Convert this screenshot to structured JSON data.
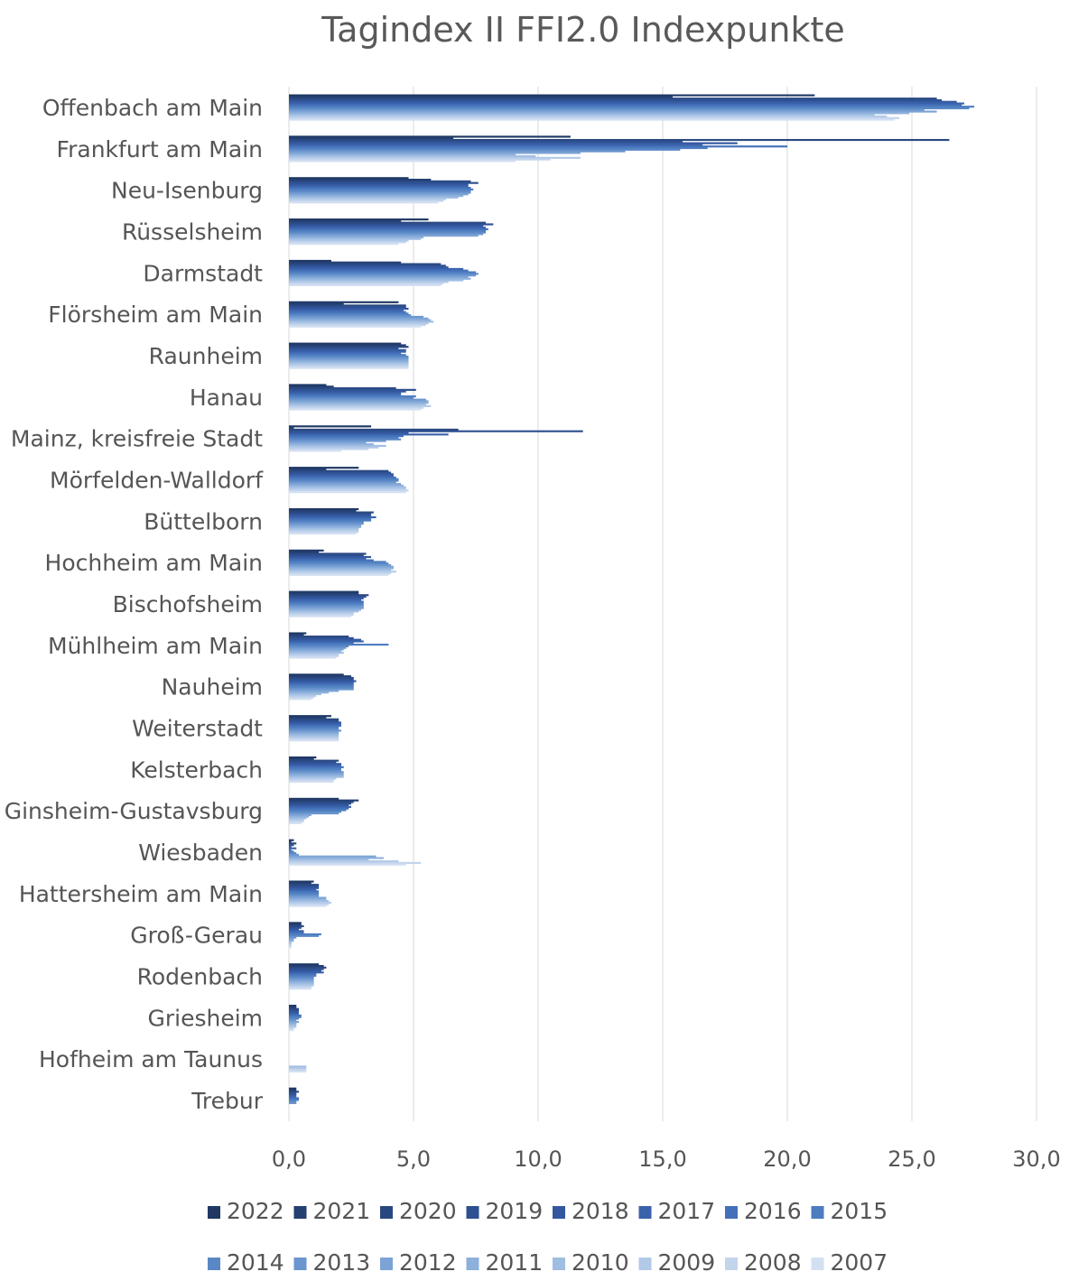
{
  "chart_data": {
    "type": "bar",
    "orientation": "horizontal",
    "title": "Tagindex II FFI2.0 Indexpunkte",
    "xlabel": "",
    "ylabel": "",
    "xlim": [
      0,
      30
    ],
    "x_ticks": [
      "0,0",
      "5,0",
      "10,0",
      "15,0",
      "20,0",
      "25,0",
      "30,0"
    ],
    "x_tick_values": [
      0,
      5,
      10,
      15,
      20,
      25,
      30
    ],
    "grid": "vertical",
    "legend_position": "bottom",
    "categories": [
      "Offenbach am Main",
      "Frankfurt am Main",
      "Neu-Isenburg",
      "Rüsselsheim",
      "Darmstadt",
      "Flörsheim am Main",
      "Raunheim",
      "Hanau",
      "Mainz, kreisfreie Stadt",
      "Mörfelden-Walldorf",
      "Büttelborn",
      "Hochheim am Main",
      "Bischofsheim",
      "Mühlheim am Main",
      "Nauheim",
      "Weiterstadt",
      "Kelsterbach",
      "Ginsheim-Gustavsburg",
      "Wiesbaden",
      "Hattersheim am Main",
      "Groß-Gerau",
      "Rodenbach",
      "Griesheim",
      "Hofheim am Taunus",
      "Trebur"
    ],
    "series": [
      {
        "name": "2022",
        "color": "#1f3864",
        "values": [
          21.1,
          11.3,
          4.8,
          5.6,
          1.7,
          4.4,
          4.5,
          1.5,
          3.3,
          2.8,
          2.8,
          1.4,
          2.8,
          0.7,
          2.2,
          1.7,
          1.1,
          2.0,
          0.2,
          1.0,
          0.5,
          1.2,
          0.3,
          0.0,
          0.3
        ]
      },
      {
        "name": "2021",
        "color": "#243f72",
        "values": [
          15.4,
          6.6,
          5.7,
          4.5,
          4.5,
          2.2,
          4.7,
          1.8,
          0.2,
          1.5,
          2.7,
          1.2,
          2.8,
          0.6,
          2.5,
          1.5,
          1.0,
          2.8,
          0.1,
          0.9,
          0.5,
          1.4,
          0.3,
          0.0,
          0.3
        ]
      },
      {
        "name": "2020",
        "color": "#2a4880",
        "values": [
          26.0,
          26.5,
          7.3,
          7.9,
          6.1,
          4.7,
          4.8,
          4.3,
          6.8,
          4.0,
          3.4,
          3.1,
          3.2,
          2.4,
          2.6,
          2.0,
          2.0,
          2.6,
          0.3,
          1.2,
          0.6,
          1.5,
          0.4,
          0.0,
          0.4
        ]
      },
      {
        "name": "2019",
        "color": "#2e5090",
        "values": [
          26.2,
          15.8,
          7.6,
          8.2,
          6.3,
          4.7,
          4.4,
          5.1,
          11.8,
          4.1,
          3.3,
          3.0,
          3.1,
          2.6,
          2.6,
          2.0,
          1.9,
          2.5,
          0.2,
          1.2,
          0.5,
          1.4,
          0.4,
          0.0,
          0.3
        ]
      },
      {
        "name": "2018",
        "color": "#3358a0",
        "values": [
          26.8,
          18.0,
          7.2,
          7.8,
          6.4,
          4.8,
          4.7,
          4.7,
          4.8,
          4.2,
          3.3,
          3.3,
          3.0,
          2.9,
          2.7,
          2.1,
          2.1,
          2.4,
          0.1,
          1.2,
          0.4,
          1.3,
          0.4,
          0.0,
          0.3
        ]
      },
      {
        "name": "2017",
        "color": "#3a62ab",
        "values": [
          27.1,
          16.6,
          7.2,
          7.9,
          7.0,
          4.6,
          4.7,
          4.5,
          6.4,
          4.2,
          3.5,
          3.1,
          2.9,
          3.0,
          2.6,
          2.1,
          2.1,
          2.5,
          0.3,
          1.1,
          0.6,
          1.4,
          0.4,
          0.0,
          0.3
        ]
      },
      {
        "name": "2016",
        "color": "#4370b8",
        "values": [
          27.0,
          20.0,
          7.3,
          8.0,
          7.2,
          4.7,
          4.5,
          4.5,
          4.6,
          4.3,
          3.3,
          3.4,
          3.0,
          2.6,
          2.6,
          2.1,
          2.2,
          2.4,
          0.1,
          1.2,
          0.6,
          1.1,
          0.5,
          0.0,
          0.4
        ]
      },
      {
        "name": "2015",
        "color": "#4d7cc0",
        "values": [
          27.5,
          16.8,
          7.4,
          7.9,
          7.5,
          4.8,
          4.7,
          5.1,
          4.4,
          4.4,
          3.3,
          3.9,
          3.0,
          4.0,
          2.6,
          2.0,
          2.1,
          2.3,
          0.2,
          1.2,
          1.3,
          1.1,
          0.5,
          0.0,
          0.4
        ]
      },
      {
        "name": "2014",
        "color": "#5a88c6",
        "values": [
          27.3,
          15.7,
          7.3,
          7.9,
          7.6,
          4.9,
          4.8,
          5.0,
          4.5,
          4.4,
          3.0,
          4.0,
          3.0,
          2.4,
          2.6,
          2.0,
          2.1,
          2.1,
          0.3,
          1.2,
          1.2,
          1.0,
          0.4,
          0.0,
          0.3
        ]
      },
      {
        "name": "2013",
        "color": "#6b96cf",
        "values": [
          25.5,
          13.5,
          7.3,
          7.8,
          7.5,
          5.4,
          4.8,
          5.5,
          3.9,
          4.3,
          3.0,
          4.1,
          3.0,
          2.3,
          2.6,
          2.1,
          2.2,
          2.0,
          0.4,
          1.2,
          0.3,
          1.0,
          0.3,
          0.0,
          0.3
        ]
      },
      {
        "name": "2012",
        "color": "#7ca3d5",
        "values": [
          26.0,
          11.7,
          7.2,
          7.6,
          7.2,
          5.6,
          4.8,
          5.6,
          3.1,
          4.5,
          2.9,
          4.2,
          3.0,
          2.2,
          2.0,
          2.0,
          2.2,
          0.9,
          3.5,
          1.5,
          0.2,
          1.0,
          0.4,
          0.0,
          0.0
        ]
      },
      {
        "name": "2011",
        "color": "#8db0dc",
        "values": [
          24.9,
          9.1,
          7.0,
          5.4,
          7.3,
          5.7,
          4.8,
          5.6,
          3.4,
          4.6,
          2.9,
          4.2,
          2.9,
          2.1,
          1.6,
          2.0,
          2.2,
          0.8,
          3.8,
          1.5,
          0.2,
          1.0,
          0.3,
          0.0,
          0.0
        ]
      },
      {
        "name": "2010",
        "color": "#a0bde2",
        "values": [
          23.5,
          9.9,
          6.8,
          5.3,
          7.0,
          5.8,
          4.8,
          5.5,
          3.9,
          4.7,
          2.8,
          4.1,
          2.8,
          2.2,
          1.3,
          2.0,
          2.2,
          0.7,
          3.2,
          1.6,
          0.1,
          1.0,
          0.3,
          0.7,
          0.0
        ]
      },
      {
        "name": "2009",
        "color": "#b2c9e8",
        "values": [
          24.0,
          11.7,
          6.3,
          4.8,
          6.4,
          5.6,
          4.8,
          5.7,
          3.6,
          4.7,
          2.8,
          4.3,
          2.6,
          2.0,
          1.1,
          2.0,
          1.9,
          0.6,
          4.4,
          1.7,
          0.1,
          1.0,
          0.3,
          0.7,
          0.0
        ]
      },
      {
        "name": "2008",
        "color": "#c3d4ed",
        "values": [
          24.5,
          10.5,
          6.2,
          4.7,
          6.2,
          5.5,
          4.8,
          5.4,
          3.2,
          4.8,
          2.8,
          4.1,
          2.6,
          2.0,
          1.0,
          2.0,
          1.8,
          0.6,
          5.3,
          1.6,
          0.1,
          0.9,
          0.2,
          0.7,
          0.0
        ]
      },
      {
        "name": "2007",
        "color": "#d3e0f2",
        "values": [
          24.3,
          9.1,
          6.0,
          4.4,
          6.1,
          5.3,
          4.8,
          5.3,
          2.1,
          4.7,
          2.7,
          4.0,
          2.5,
          1.9,
          0.9,
          2.0,
          1.8,
          0.5,
          4.7,
          1.5,
          0.1,
          0.9,
          0.2,
          0.7,
          0.0
        ]
      }
    ]
  }
}
